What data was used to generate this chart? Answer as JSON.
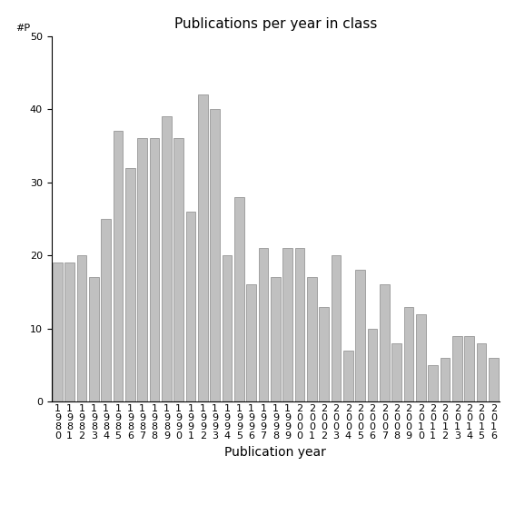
{
  "title": "Publications per year in class",
  "xlabel": "Publication year",
  "ylabel": "#P",
  "years": [
    "1980",
    "1981",
    "1982",
    "1983",
    "1984",
    "1985",
    "1986",
    "1987",
    "1988",
    "1989",
    "1990",
    "1991",
    "1992",
    "1993",
    "1994",
    "1995",
    "1996",
    "1997",
    "1998",
    "1999",
    "2000",
    "2001",
    "2002",
    "2003",
    "2004",
    "2005",
    "2006",
    "2007",
    "2008",
    "2009",
    "2010",
    "2011",
    "2012",
    "2013",
    "2014",
    "2015",
    "2016"
  ],
  "values": [
    19,
    19,
    20,
    17,
    25,
    37,
    32,
    36,
    36,
    39,
    36,
    26,
    42,
    40,
    20,
    28,
    16,
    21,
    17,
    21,
    21,
    17,
    13,
    20,
    7,
    18,
    10,
    16,
    8,
    13,
    12,
    5,
    6,
    9,
    9,
    8,
    6
  ],
  "bar_color": "#c0c0c0",
  "bar_edgecolor": "#888888",
  "ylim": [
    0,
    50
  ],
  "yticks": [
    0,
    10,
    20,
    30,
    40,
    50
  ],
  "background_color": "#ffffff",
  "title_fontsize": 11,
  "axis_label_fontsize": 10,
  "tick_fontsize": 8
}
